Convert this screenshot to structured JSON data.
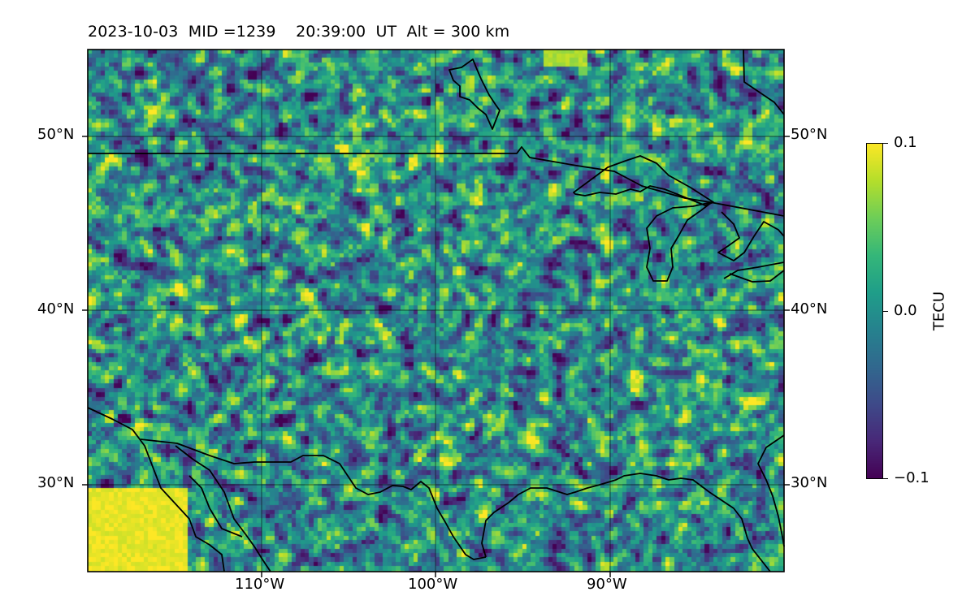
{
  "title": "2023-10-03  MID =1239    20:39:00  UT  Alt = 300 km",
  "map": {
    "lon_range": [
      -120,
      -80
    ],
    "lat_range": [
      25,
      55
    ],
    "latitude_labels": [
      "30°N",
      "40°N",
      "50°N"
    ],
    "longitude_labels": [
      "110°W",
      "100°W",
      "90°W"
    ],
    "colormap": "viridis",
    "coastline_color": "#000000"
  },
  "colorbar": {
    "label": "TECU",
    "ticks": [
      "0.1",
      "0.0",
      "−0.1"
    ],
    "range": [
      -0.1,
      0.1
    ]
  }
}
